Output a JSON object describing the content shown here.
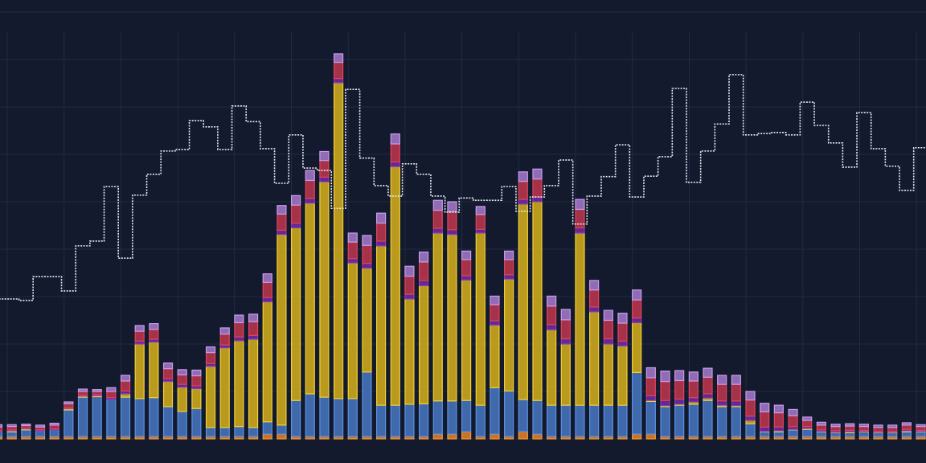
{
  "chart_data": {
    "type": "bar",
    "stacked": true,
    "title": "",
    "xlabel": "",
    "ylabel": "",
    "ylim": [
      0,
      90
    ],
    "grid": true,
    "legend": "none",
    "n_bars": 66,
    "series": [
      {
        "key": "orange",
        "color": "#e07a20",
        "border": "#f39a3c",
        "values": [
          0.5,
          0.5,
          0.5,
          0.5,
          0.5,
          0.5,
          0.5,
          0.5,
          0.5,
          0.5,
          0.5,
          0.5,
          0.5,
          0.5,
          0.5,
          0.5,
          0.5,
          0.5,
          0.5,
          1.0,
          1.0,
          0.5,
          0.5,
          0.5,
          0.5,
          0.5,
          0.5,
          0.5,
          0.5,
          0.5,
          0.5,
          1.0,
          1.0,
          1.5,
          0.5,
          1.0,
          0.5,
          1.5,
          1.0,
          0.5,
          0.5,
          0.5,
          0.5,
          0.5,
          0.5,
          1.0,
          1.0,
          0.5,
          0.5,
          0.5,
          0.5,
          0.5,
          0.5,
          0.5,
          0.5,
          0.5,
          0.5,
          0.5,
          0.5,
          0.5,
          0.5,
          0.5,
          0.5,
          0.5,
          0.5,
          0.5
        ]
      },
      {
        "key": "blue",
        "color": "#4470b6",
        "border": "#5b92e6",
        "values": [
          1.0,
          1.0,
          1.4,
          1.2,
          1.4,
          5.6,
          8.3,
          8.4,
          7.8,
          8.3,
          8.0,
          8.2,
          6.3,
          5.3,
          5.9,
          1.9,
          1.9,
          2.1,
          1.9,
          2.6,
          1.9,
          7.6,
          9.0,
          8.3,
          8.0,
          8.0,
          13.6,
          6.6,
          6.6,
          6.8,
          6.9,
          7.0,
          7.0,
          6.6,
          6.6,
          9.8,
          9.6,
          6.8,
          7.1,
          6.6,
          6.6,
          6.6,
          6.6,
          6.6,
          6.6,
          13.0,
          6.9,
          6.3,
          6.6,
          6.8,
          7.6,
          6.3,
          6.3,
          2.7,
          1.0,
          1.0,
          1.4,
          1.5,
          1.0,
          0.8,
          0.8,
          1.0,
          0.8,
          0.8,
          1.0,
          1.0
        ]
      },
      {
        "key": "yellow",
        "color": "#c9a41e",
        "border": "#f2d132",
        "values": [
          0,
          0.2,
          0.2,
          0,
          0,
          0.3,
          0.2,
          0.2,
          0,
          0.7,
          11.5,
          11.7,
          5.3,
          5.1,
          4.2,
          12.9,
          16.8,
          18.1,
          18.6,
          25.3,
          40.2,
          36.4,
          40.2,
          45.4,
          66.6,
          28.6,
          21.9,
          33.6,
          50.3,
          22.2,
          24.9,
          35.4,
          35.1,
          25.4,
          36.3,
          13.2,
          23.6,
          41.2,
          41.9,
          15.9,
          12.9,
          36.3,
          19.7,
          12.9,
          12.5,
          10.5,
          0.2,
          0.2,
          0.2,
          0.5,
          0.5,
          0.3,
          0.2,
          0.7,
          0.1,
          0.2,
          0.1,
          0.2,
          0.1,
          0.1,
          0.2,
          0.1,
          0.1,
          0.1,
          0.2,
          0.1
        ]
      },
      {
        "key": "purple",
        "color": "#6a2a98",
        "border": "#8a3cc0",
        "values": [
          0.2,
          0.2,
          0.2,
          0.2,
          0.2,
          0.2,
          0.2,
          0.2,
          0.4,
          0.6,
          0.6,
          0.6,
          0.6,
          0.6,
          0.6,
          0.6,
          0.6,
          0.8,
          0.8,
          0.9,
          0.9,
          1.0,
          1.0,
          1.0,
          0.9,
          0.9,
          1.0,
          1.0,
          1.0,
          1.0,
          1.1,
          1.0,
          1.0,
          0.9,
          0.8,
          0.9,
          0.9,
          1.0,
          1.0,
          1.1,
          1.1,
          1.1,
          1.0,
          1.1,
          1.0,
          1.0,
          1.0,
          1.1,
          1.1,
          0.9,
          0.9,
          0.9,
          1.0,
          0.9,
          0.9,
          0.8,
          0.6,
          0.4,
          0.3,
          0.3,
          0.3,
          0.2,
          0.2,
          0.2,
          0.3,
          0.2
        ]
      },
      {
        "key": "red",
        "color": "#b3344c",
        "border": "#e2435a",
        "values": [
          0.8,
          0.7,
          0.5,
          0.6,
          0.8,
          0.8,
          0.8,
          0.7,
          1.3,
          2.1,
          2.1,
          2.1,
          2.1,
          2.0,
          2.1,
          2.3,
          2.3,
          3.0,
          2.9,
          3.2,
          3.4,
          3.8,
          3.8,
          3.5,
          3.4,
          3.5,
          3.8,
          3.8,
          3.8,
          3.8,
          3.9,
          3.8,
          3.8,
          3.4,
          3.1,
          3.4,
          3.2,
          3.8,
          3.8,
          3.9,
          4.0,
          3.9,
          3.6,
          3.9,
          3.8,
          3.8,
          3.8,
          4.0,
          3.9,
          3.5,
          3.5,
          3.5,
          3.5,
          3.4,
          3.2,
          3.0,
          2.3,
          1.3,
          1.0,
          0.9,
          0.9,
          0.8,
          0.8,
          0.8,
          0.9,
          0.8
        ]
      },
      {
        "key": "lavender",
        "color": "#9c72c2",
        "border": "#c69ee8",
        "values": [
          0.5,
          0.4,
          0.3,
          0.4,
          0.4,
          0.4,
          0.5,
          0.4,
          0.8,
          1.2,
          1.2,
          1.2,
          1.2,
          1.1,
          1.2,
          1.2,
          1.3,
          1.6,
          1.6,
          1.8,
          1.8,
          2.0,
          2.1,
          1.9,
          1.8,
          1.9,
          2.1,
          2.1,
          2.1,
          2.1,
          2.1,
          2.1,
          2.1,
          1.8,
          1.7,
          1.8,
          1.8,
          2.0,
          2.1,
          2.1,
          2.2,
          2.1,
          2.0,
          2.1,
          2.1,
          2.1,
          2.1,
          2.2,
          2.1,
          1.9,
          1.9,
          1.9,
          1.9,
          1.8,
          1.8,
          1.6,
          1.3,
          0.7,
          0.6,
          0.5,
          0.5,
          0.5,
          0.5,
          0.5,
          0.5,
          0.4
        ]
      }
    ],
    "line": {
      "type": "step",
      "style": "dashed",
      "color": "#e6e9f0",
      "values": [
        29.5,
        29.5,
        29.2,
        34.2,
        34.2,
        31.2,
        40.7,
        41.7,
        53.2,
        38.1,
        51.4,
        55.8,
        60.7,
        61.0,
        67.1,
        65.8,
        61.0,
        70.2,
        66.9,
        61.2,
        53.9,
        64.1,
        57.1,
        56.6,
        48.6,
        73.7,
        59.2,
        53.4,
        51.2,
        58.0,
        55.8,
        51.2,
        47.8,
        50.8,
        50.3,
        50.3,
        53.2,
        48.0,
        51.0,
        53.4,
        58.8,
        45.3,
        51.2,
        55.3,
        62.0,
        51.0,
        55.4,
        59.5,
        73.9,
        54.1,
        60.7,
        66.4,
        76.8,
        64.1,
        64.4,
        64.6,
        64.1,
        71.0,
        66.1,
        62.4,
        57.3,
        68.8,
        61.2,
        57.5,
        52.4,
        61.4
      ]
    },
    "colors": {
      "background": "#131a2e",
      "grid": "#222b40"
    }
  }
}
